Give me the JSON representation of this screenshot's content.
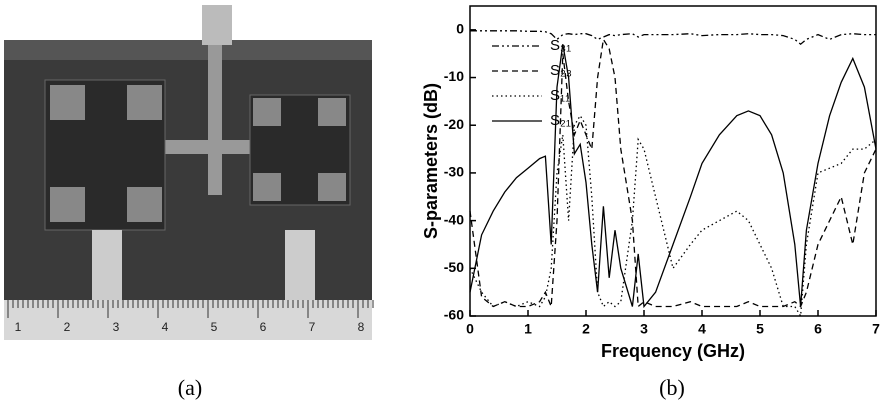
{
  "panels": {
    "a": {
      "caption": "(a)",
      "ruler_labels": [
        "1",
        "2",
        "3",
        "4",
        "5",
        "6",
        "7",
        "8"
      ]
    },
    "b": {
      "caption": "(b)"
    }
  },
  "chart_data": {
    "type": "line",
    "xlabel": "Frequency (GHz)",
    "ylabel": "S-parameters (dB)",
    "x": [
      0,
      0.2,
      0.4,
      0.6,
      0.8,
      1.0,
      1.2,
      1.3,
      1.4,
      1.5,
      1.6,
      1.7,
      1.8,
      1.9,
      2.0,
      2.1,
      2.2,
      2.3,
      2.4,
      2.5,
      2.6,
      2.8,
      2.9,
      3.0,
      3.2,
      3.5,
      3.8,
      4.0,
      4.3,
      4.6,
      4.8,
      5.0,
      5.2,
      5.4,
      5.6,
      5.7,
      5.8,
      6.0,
      6.2,
      6.4,
      6.6,
      6.8,
      7.0
    ],
    "series": [
      {
        "name": "S₃₁",
        "color": "#000000",
        "dash": "7 3 2 3 2 3",
        "values": [
          -0.2,
          -0.2,
          -0.2,
          -0.2,
          -0.2,
          -0.3,
          -0.3,
          -0.4,
          -0.8,
          -2,
          -1,
          -0.8,
          -1,
          -0.8,
          -0.8,
          -1.2,
          -2,
          -1.5,
          -1,
          -1.2,
          -1,
          -0.8,
          -1.5,
          -1,
          -1,
          -1,
          -0.8,
          -1.2,
          -1,
          -1,
          -0.8,
          -1,
          -1,
          -1.2,
          -2,
          -3,
          -2,
          -1,
          -2,
          -1,
          -0.8,
          -1,
          -1
        ]
      },
      {
        "name": "S₂₃",
        "color": "#000000",
        "dash": "6 4",
        "values": [
          -38,
          -56,
          -58,
          -57,
          -58,
          -58,
          -57,
          -55,
          -58,
          -40,
          -5,
          -15,
          -22,
          -19,
          -22,
          -25,
          -10,
          -2,
          -4,
          -10,
          -25,
          -40,
          -58,
          -57,
          -58,
          -58,
          -57,
          -58,
          -58,
          -58,
          -57,
          -58,
          -58,
          -58,
          -57,
          -58,
          -55,
          -45,
          -40,
          -35,
          -45,
          -30,
          -25
        ]
      },
      {
        "name": "S₁₁",
        "color": "#000000",
        "dash": "1.5 3",
        "values": [
          -50,
          -55,
          -58,
          -57,
          -58,
          -57,
          -58,
          -56,
          -50,
          -30,
          -22,
          -40,
          -20,
          -18,
          -20,
          -35,
          -55,
          -58,
          -57,
          -58,
          -57,
          -40,
          -23,
          -25,
          -35,
          -50,
          -45,
          -42,
          -40,
          -38,
          -40,
          -45,
          -50,
          -58,
          -58,
          -60,
          -45,
          -30,
          -29,
          -28,
          -25,
          -25,
          -23
        ]
      },
      {
        "name": "S₂₁",
        "color": "#000000",
        "dash": "none",
        "values": [
          -55,
          -43,
          -38,
          -34,
          -31,
          -29,
          -27,
          -26.5,
          -45,
          -12,
          -3,
          -10,
          -26,
          -24,
          -32,
          -45,
          -55,
          -37,
          -52,
          -42,
          -50,
          -58,
          -47,
          -58,
          -55,
          -45,
          -35,
          -28,
          -22,
          -18,
          -17,
          -18,
          -22,
          -30,
          -45,
          -58,
          -42,
          -28,
          -18,
          -11,
          -6,
          -12,
          -25
        ]
      }
    ],
    "xlim": [
      0,
      7
    ],
    "ylim": [
      -60,
      5
    ],
    "xticks": [
      0,
      1,
      2,
      3,
      4,
      5,
      6,
      7
    ],
    "yticks": [
      -60,
      -50,
      -40,
      -30,
      -20,
      -10,
      0
    ],
    "grid": false,
    "legend": "upper-left"
  }
}
